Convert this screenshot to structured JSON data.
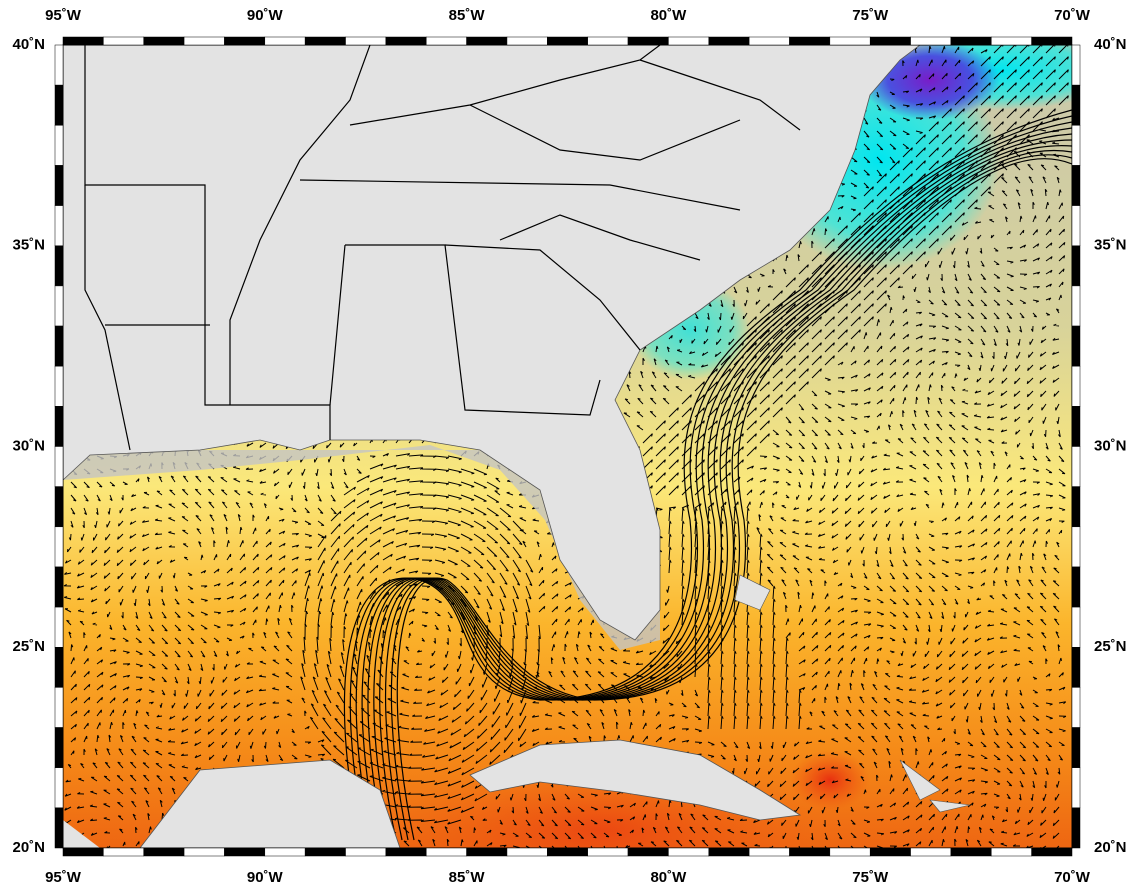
{
  "map": {
    "lon_labels": [
      "95˚W",
      "90˚W",
      "85˚W",
      "80˚W",
      "75˚W",
      "70˚W"
    ],
    "lat_labels": [
      "20˚N",
      "25˚N",
      "30˚N",
      "35˚N",
      "40˚N"
    ]
  }
}
